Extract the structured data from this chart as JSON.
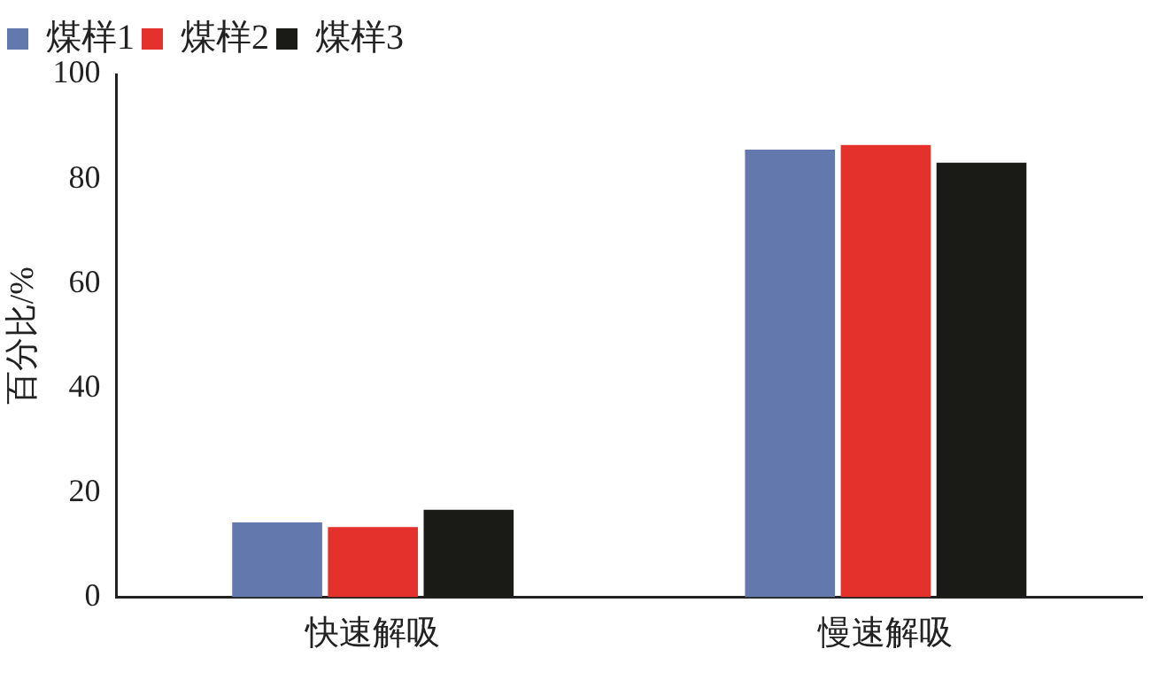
{
  "chart_data": {
    "type": "bar",
    "ylabel": "百分比/%",
    "categories": [
      "快速解吸",
      "慢速解吸"
    ],
    "series": [
      {
        "name": "煤样1",
        "color": "#6379ad",
        "values": [
          14.3,
          85.6
        ]
      },
      {
        "name": "煤样2",
        "color": "#e5312b",
        "values": [
          13.4,
          86.5
        ]
      },
      {
        "name": "煤样3",
        "color": "#1a1a17",
        "values": [
          16.7,
          83.1
        ]
      }
    ],
    "ylim": [
      0,
      100
    ],
    "yticks": [
      0,
      20,
      40,
      60,
      80,
      100
    ],
    "grid": false,
    "legend": "top"
  }
}
